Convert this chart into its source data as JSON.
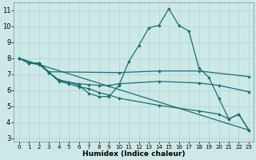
{
  "xlabel": "Humidex (Indice chaleur)",
  "bg_color": "#cce9e8",
  "grid_color": "#aed4d2",
  "line_color": "#1a7070",
  "xlim": [
    -0.5,
    23.5
  ],
  "ylim": [
    2.8,
    11.5
  ],
  "yticks": [
    3,
    4,
    5,
    6,
    7,
    8,
    9,
    10,
    11
  ],
  "xticks": [
    0,
    1,
    2,
    3,
    4,
    5,
    6,
    7,
    8,
    9,
    10,
    11,
    12,
    13,
    14,
    15,
    16,
    17,
    18,
    19,
    20,
    21,
    22,
    23
  ],
  "line1": {
    "x": [
      0,
      1,
      2,
      3,
      4,
      5,
      6,
      7,
      8,
      9,
      10,
      11,
      12,
      13,
      14,
      15,
      16,
      17,
      18,
      19,
      20,
      21,
      22,
      23
    ],
    "y": [
      8.0,
      7.7,
      7.7,
      7.1,
      6.6,
      6.5,
      6.3,
      5.8,
      5.6,
      5.6,
      6.3,
      7.8,
      8.8,
      9.9,
      10.05,
      11.1,
      10.05,
      9.7,
      7.4,
      6.8,
      5.5,
      4.2,
      4.5,
      3.5
    ]
  },
  "line2": {
    "x": [
      0,
      1,
      2,
      3,
      10,
      14,
      18,
      23
    ],
    "y": [
      8.0,
      7.7,
      7.7,
      7.15,
      7.1,
      7.2,
      7.2,
      6.85
    ]
  },
  "line3": {
    "x": [
      0,
      1,
      2,
      3,
      4,
      5,
      6,
      7,
      8,
      9,
      10,
      14,
      18,
      20,
      23
    ],
    "y": [
      8.0,
      7.7,
      7.7,
      7.1,
      6.65,
      6.5,
      6.4,
      6.35,
      6.3,
      6.3,
      6.4,
      6.55,
      6.45,
      6.3,
      5.9
    ]
  },
  "line4": {
    "x": [
      0,
      1,
      2,
      3,
      4,
      5,
      6,
      7,
      8,
      9,
      10,
      14,
      18,
      20,
      21,
      22,
      23
    ],
    "y": [
      8.0,
      7.7,
      7.6,
      7.1,
      6.55,
      6.4,
      6.2,
      6.1,
      5.85,
      5.7,
      5.5,
      5.05,
      4.7,
      4.5,
      4.2,
      4.5,
      3.5
    ]
  },
  "line5": {
    "x": [
      0,
      23
    ],
    "y": [
      8.0,
      3.5
    ]
  }
}
